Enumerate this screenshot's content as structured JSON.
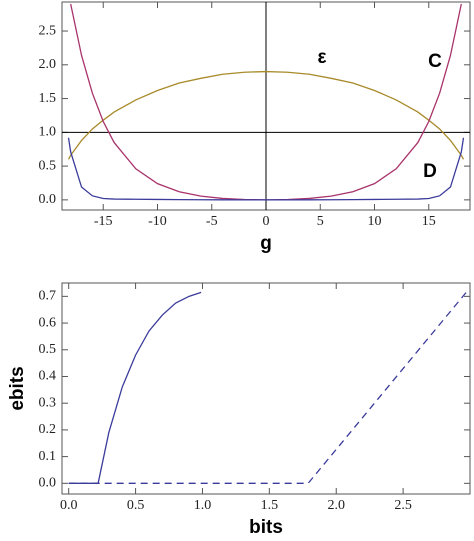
{
  "chart_data": [
    {
      "type": "line",
      "x_label": "g",
      "xlim": [
        -18.8,
        18.8
      ],
      "ylim": [
        -0.15,
        2.93
      ],
      "xticks": [
        -15,
        -10,
        -5,
        0,
        5,
        10,
        15
      ],
      "yticks": [
        {
          "value": 0,
          "label": "0.0"
        },
        0.5,
        {
          "value": 1,
          "label": "1.0"
        },
        1.5,
        {
          "value": 2,
          "label": "2.0"
        },
        2.5
      ],
      "axes_origin": [
        0,
        1
      ],
      "x": [
        -18.2,
        -18,
        -17,
        -16,
        -15,
        -14,
        -12,
        -10,
        -8,
        -6,
        -4,
        -2,
        0,
        2,
        4,
        6,
        8,
        10,
        12,
        14,
        15,
        16,
        17,
        18,
        18.2
      ],
      "series": [
        {
          "name": "ε",
          "color": "#a88a2a",
          "values": [
            0.6,
            0.66,
            0.88,
            1.05,
            1.18,
            1.3,
            1.48,
            1.62,
            1.73,
            1.8,
            1.86,
            1.89,
            1.9,
            1.89,
            1.86,
            1.8,
            1.73,
            1.62,
            1.48,
            1.3,
            1.18,
            1.05,
            0.88,
            0.66,
            0.6
          ]
        },
        {
          "name": "C",
          "color": "#a8336b",
          "values": [
            null,
            2.9,
            2.14,
            1.58,
            1.16,
            0.85,
            0.46,
            0.24,
            0.12,
            0.056,
            0.021,
            0.005,
            0,
            0.005,
            0.021,
            0.056,
            0.12,
            0.24,
            0.46,
            0.85,
            1.16,
            1.58,
            2.14,
            2.9,
            null
          ]
        },
        {
          "name": "D",
          "color": "#3b3b9b",
          "values": [
            0.92,
            0.71,
            0.19,
            0.06,
            0.02,
            0.012,
            0.009,
            0.006,
            0.004,
            0.002,
            0.001,
            0,
            0,
            0,
            0.001,
            0.002,
            0.004,
            0.006,
            0.009,
            0.012,
            0.02,
            0.06,
            0.19,
            0.71,
            0.92
          ]
        }
      ]
    },
    {
      "type": "line",
      "x_label": "bits",
      "y_label": "ebits",
      "xlim": [
        -0.05,
        3.0
      ],
      "ylim": [
        -0.04,
        0.75
      ],
      "xticks": [
        {
          "value": 0,
          "label": "0.0"
        },
        0.5,
        {
          "value": 1,
          "label": "1.0"
        },
        1.5,
        {
          "value": 2,
          "label": "2.0"
        },
        2.5
      ],
      "yticks": [
        {
          "value": 0,
          "label": "0.0"
        },
        0.1,
        0.2,
        0.3,
        0.4,
        0.5,
        0.6,
        0.7
      ],
      "series": [
        {
          "color": "#3b3b9b",
          "dashed": false,
          "x": [
            0,
            0.22,
            0.3,
            0.4,
            0.5,
            0.6,
            0.7,
            0.8,
            0.9,
            0.99
          ],
          "values": [
            0,
            0,
            0.19,
            0.36,
            0.48,
            0.57,
            0.63,
            0.675,
            0.7,
            0.715
          ]
        },
        {
          "color": "#3b3b9b",
          "dashed": true,
          "x": [
            0,
            1.79,
            2.99
          ],
          "values": [
            0,
            0,
            0.726
          ]
        }
      ]
    }
  ]
}
